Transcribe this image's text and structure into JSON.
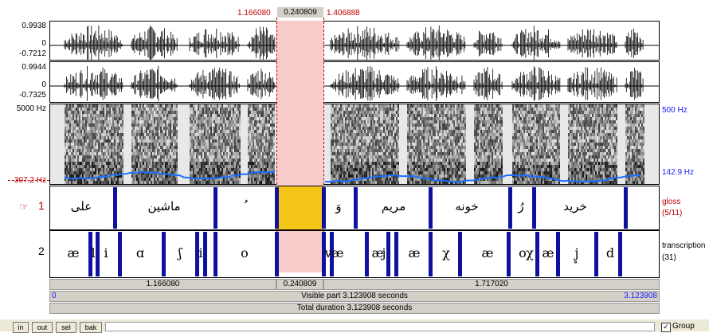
{
  "top_times": {
    "start": "1.166080",
    "dur": "0.240809",
    "end": "1.406888"
  },
  "ch1": {
    "max": "0.9938",
    "zero": "0",
    "min": "-0.7212"
  },
  "ch2": {
    "max": "0.9944",
    "zero": "0",
    "min": "-0.7325"
  },
  "spectro": {
    "top_freq": "5000 Hz",
    "pitch_min": "307.2 Hz",
    "pitch_top_right": "500 Hz",
    "pitch_bottom_right": "142.9 Hz"
  },
  "tier1": {
    "num": "1",
    "pointer": "☞",
    "name": "gloss",
    "count": "(5/11)",
    "labels": [
      "على",
      "ماشين",
      "ُ",
      "وَ",
      "مریم",
      "خونه",
      "رُ",
      "خرید"
    ]
  },
  "tier2": {
    "num": "2",
    "name": "transcription",
    "count": "(31)",
    "labels": [
      "æ",
      "l",
      "i",
      "ɑ",
      "ʃ",
      "i",
      "o",
      "v",
      "æ",
      "æ",
      "j",
      "æ",
      "χ",
      "æ",
      "o",
      "χ",
      "æ",
      "j̥",
      "d"
    ]
  },
  "bottom": {
    "left": "1.166080",
    "sel": "0.240809",
    "right": "1.717020",
    "vis_start": "0",
    "visible": "Visible part 3.123908 seconds",
    "vis_end": "3.123908",
    "total": "Total duration 3.123908 seconds"
  },
  "toolbar": {
    "in": "in",
    "out": "out",
    "sel": "sel",
    "bak": "bak",
    "group": "Group"
  },
  "colors": {
    "accent_red": "#c00000",
    "tier_blue": "#1010a0",
    "pitch": "#1a6fff",
    "selection": "#f9cccc",
    "highlight": "#f5c518"
  }
}
